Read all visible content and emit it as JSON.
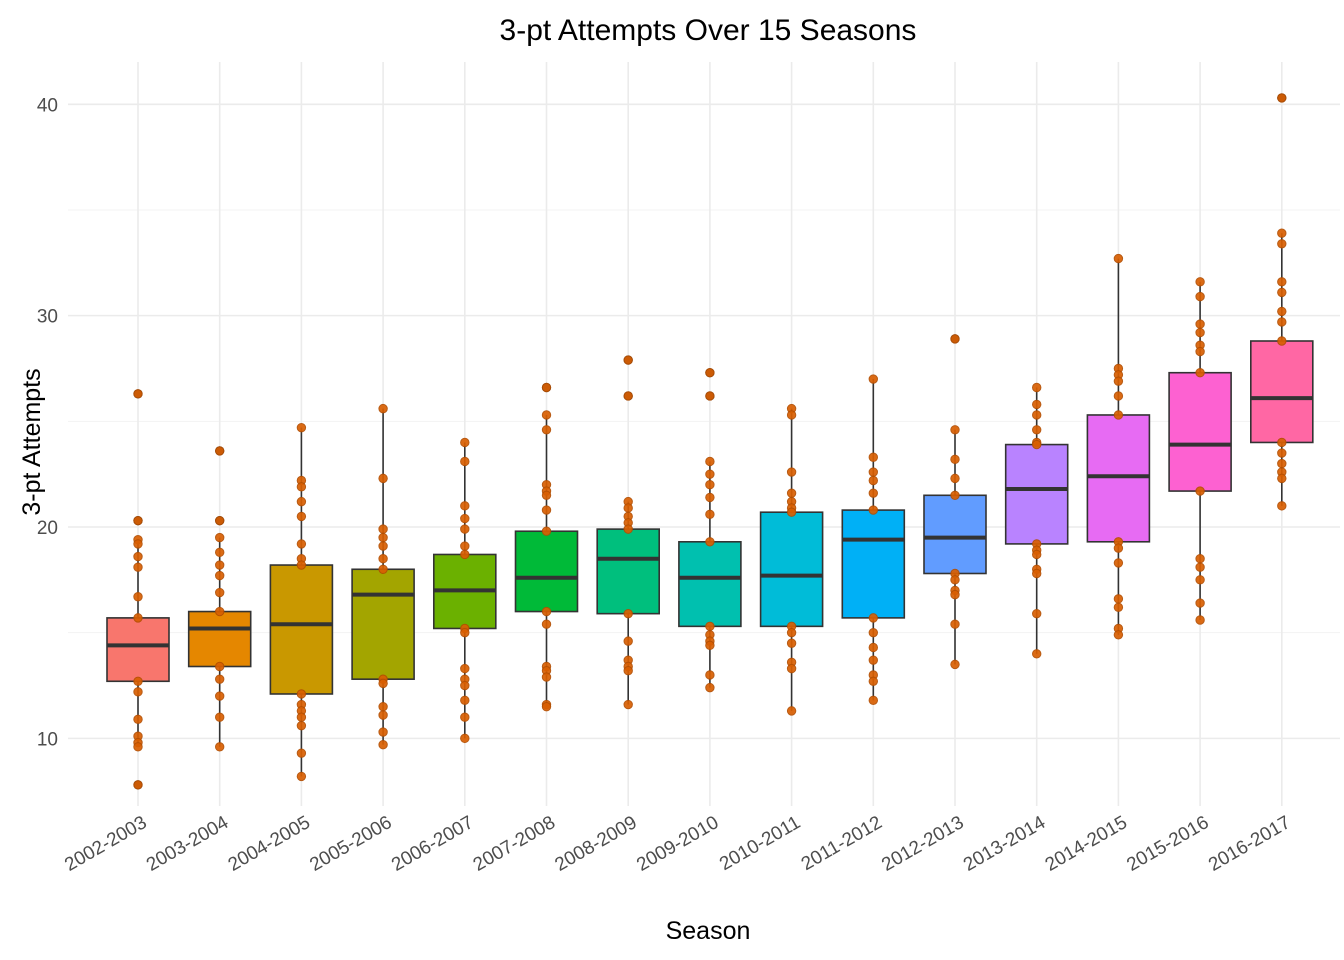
{
  "chart_data": {
    "type": "boxplot",
    "title": "3-pt Attempts Over 15 Seasons",
    "xlabel": "Season",
    "ylabel": "3-pt Attempts",
    "ylim": [
      6.8,
      42
    ],
    "yticks": [
      10,
      20,
      30,
      40
    ],
    "grid": true,
    "legend": "none",
    "categories": [
      "2002-2003",
      "2003-2004",
      "2004-2005",
      "2005-2006",
      "2006-2007",
      "2007-2008",
      "2008-2009",
      "2009-2010",
      "2010-2011",
      "2011-2012",
      "2012-2013",
      "2013-2014",
      "2014-2015",
      "2015-2016",
      "2016-2017"
    ],
    "colors": [
      "#F8766D",
      "#E58700",
      "#C99800",
      "#A3A500",
      "#6BB100",
      "#00BA38",
      "#00BF7D",
      "#00C0AF",
      "#00BCD8",
      "#00B0F6",
      "#619CFF",
      "#B983FF",
      "#E76BF3",
      "#FD61D1",
      "#FF67A4"
    ],
    "boxes": [
      {
        "q1": 12.7,
        "median": 14.4,
        "q3": 15.7,
        "whisker_low": 9.6,
        "whisker_high": 19.4,
        "outliers": [
          26.3,
          20.3,
          7.8
        ]
      },
      {
        "q1": 13.4,
        "median": 15.2,
        "q3": 16.0,
        "whisker_low": 9.6,
        "whisker_high": 19.5,
        "outliers": [
          23.6,
          20.3
        ]
      },
      {
        "q1": 12.1,
        "median": 15.4,
        "q3": 18.2,
        "whisker_low": 8.2,
        "whisker_high": 24.7,
        "outliers": []
      },
      {
        "q1": 12.8,
        "median": 16.8,
        "q3": 18.0,
        "whisker_low": 9.7,
        "whisker_high": 25.6,
        "outliers": []
      },
      {
        "q1": 15.2,
        "median": 17.0,
        "q3": 18.7,
        "whisker_low": 10.0,
        "whisker_high": 24.0,
        "outliers": []
      },
      {
        "q1": 16.0,
        "median": 17.6,
        "q3": 19.8,
        "whisker_low": 11.5,
        "whisker_high": 25.3,
        "outliers": [
          26.6
        ]
      },
      {
        "q1": 15.9,
        "median": 18.5,
        "q3": 19.9,
        "whisker_low": 11.6,
        "whisker_high": 21.2,
        "outliers": [
          27.9,
          26.2
        ]
      },
      {
        "q1": 15.3,
        "median": 17.6,
        "q3": 19.3,
        "whisker_low": 12.4,
        "whisker_high": 23.1,
        "outliers": [
          27.3,
          26.2
        ]
      },
      {
        "q1": 15.3,
        "median": 17.7,
        "q3": 20.7,
        "whisker_low": 11.3,
        "whisker_high": 25.6,
        "outliers": []
      },
      {
        "q1": 15.7,
        "median": 19.4,
        "q3": 20.8,
        "whisker_low": 11.8,
        "whisker_high": 27.0,
        "outliers": []
      },
      {
        "q1": 17.8,
        "median": 19.5,
        "q3": 21.5,
        "whisker_low": 13.5,
        "whisker_high": 24.6,
        "outliers": [
          28.9
        ]
      },
      {
        "q1": 19.2,
        "median": 21.8,
        "q3": 23.9,
        "whisker_low": 14.0,
        "whisker_high": 26.6,
        "outliers": []
      },
      {
        "q1": 19.3,
        "median": 22.4,
        "q3": 25.3,
        "whisker_low": 14.9,
        "whisker_high": 32.7,
        "outliers": []
      },
      {
        "q1": 21.7,
        "median": 23.9,
        "q3": 27.3,
        "whisker_low": 15.6,
        "whisker_high": 31.6,
        "outliers": []
      },
      {
        "q1": 24.0,
        "median": 26.1,
        "q3": 28.8,
        "whisker_low": 21.0,
        "whisker_high": 33.9,
        "outliers": [
          40.3
        ]
      }
    ],
    "points": [
      [
        26.3,
        20.3,
        19.4,
        19.2,
        18.6,
        18.1,
        16.7,
        15.7,
        12.7,
        12.2,
        10.9,
        10.1,
        9.8,
        9.6,
        7.8
      ],
      [
        23.6,
        20.3,
        19.5,
        18.8,
        18.2,
        17.7,
        16.9,
        16.0,
        13.4,
        12.8,
        12.0,
        11.0,
        9.6
      ],
      [
        24.7,
        22.2,
        21.9,
        21.2,
        20.5,
        19.2,
        18.5,
        18.2,
        12.1,
        11.6,
        11.3,
        11.0,
        10.6,
        9.3,
        8.2
      ],
      [
        25.6,
        22.3,
        19.9,
        19.5,
        19.1,
        18.5,
        18.0,
        12.8,
        12.6,
        11.5,
        11.1,
        10.3,
        9.7
      ],
      [
        24.0,
        23.1,
        21.0,
        20.4,
        19.9,
        19.1,
        18.7,
        15.2,
        15.0,
        13.3,
        12.8,
        12.5,
        11.8,
        11.0,
        10.0
      ],
      [
        26.6,
        25.3,
        24.6,
        22.0,
        21.7,
        21.5,
        20.8,
        19.8,
        16.0,
        15.4,
        13.4,
        13.2,
        12.9,
        11.6,
        11.5
      ],
      [
        27.9,
        26.2,
        21.2,
        20.9,
        20.5,
        20.2,
        19.9,
        15.9,
        14.6,
        13.7,
        13.4,
        13.2,
        11.6
      ],
      [
        27.3,
        26.2,
        23.1,
        22.5,
        22.0,
        21.4,
        20.6,
        19.3,
        15.3,
        14.9,
        14.6,
        14.4,
        13.0,
        12.4
      ],
      [
        25.6,
        25.3,
        22.6,
        21.6,
        21.2,
        20.9,
        20.7,
        15.3,
        15.0,
        14.5,
        13.6,
        13.3,
        11.3
      ],
      [
        27.0,
        23.3,
        22.6,
        22.2,
        21.6,
        20.8,
        15.7,
        15.0,
        14.3,
        13.7,
        13.0,
        12.7,
        11.8
      ],
      [
        28.9,
        24.6,
        23.2,
        22.3,
        21.5,
        17.8,
        17.5,
        17.0,
        16.8,
        15.4,
        13.5
      ],
      [
        26.6,
        25.8,
        25.3,
        24.6,
        24.0,
        23.9,
        19.2,
        18.9,
        18.7,
        18.0,
        17.8,
        15.9,
        14.0
      ],
      [
        32.7,
        27.5,
        27.2,
        26.9,
        26.2,
        25.3,
        19.3,
        19.0,
        18.3,
        16.6,
        16.2,
        15.2,
        14.9
      ],
      [
        31.6,
        30.9,
        29.6,
        29.2,
        28.6,
        28.3,
        27.3,
        21.7,
        18.5,
        18.1,
        17.5,
        16.4,
        15.6
      ],
      [
        40.3,
        33.9,
        33.4,
        31.6,
        31.1,
        30.2,
        29.7,
        28.8,
        24.0,
        23.5,
        23.0,
        22.6,
        22.3,
        21.0
      ]
    ]
  }
}
